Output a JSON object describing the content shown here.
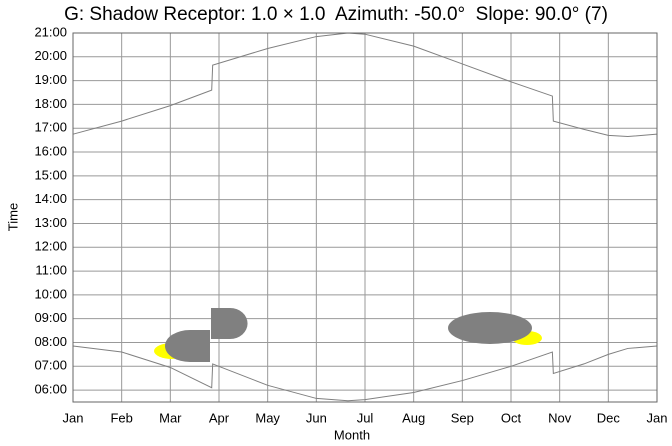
{
  "chart_data": {
    "type": "line",
    "title": "G: Shadow Receptor: 1.0 × 1.0  Azimuth: -50.0°  Slope: 90.0° (7)",
    "xlabel": "Month",
    "ylabel": "Time",
    "xlim": [
      0,
      12
    ],
    "xticks": [
      {
        "value": 0,
        "label": "Jan"
      },
      {
        "value": 1,
        "label": "Feb"
      },
      {
        "value": 2,
        "label": "Mar"
      },
      {
        "value": 3,
        "label": "Apr"
      },
      {
        "value": 4,
        "label": "May"
      },
      {
        "value": 5,
        "label": "Jun"
      },
      {
        "value": 6,
        "label": "Jul"
      },
      {
        "value": 7,
        "label": "Aug"
      },
      {
        "value": 8,
        "label": "Sep"
      },
      {
        "value": 9,
        "label": "Oct"
      },
      {
        "value": 10,
        "label": "Nov"
      },
      {
        "value": 11,
        "label": "Dec"
      },
      {
        "value": 12,
        "label": "Jan"
      }
    ],
    "ylim": [
      5.5,
      21
    ],
    "yticks": [
      {
        "value": 6,
        "label": "06:00"
      },
      {
        "value": 7,
        "label": "07:00"
      },
      {
        "value": 8,
        "label": "08:00"
      },
      {
        "value": 9,
        "label": "09:00"
      },
      {
        "value": 10,
        "label": "10:00"
      },
      {
        "value": 11,
        "label": "11:00"
      },
      {
        "value": 12,
        "label": "12:00"
      },
      {
        "value": 13,
        "label": "13:00"
      },
      {
        "value": 14,
        "label": "14:00"
      },
      {
        "value": 15,
        "label": "15:00"
      },
      {
        "value": 16,
        "label": "16:00"
      },
      {
        "value": 17,
        "label": "17:00"
      },
      {
        "value": 18,
        "label": "18:00"
      },
      {
        "value": 19,
        "label": "19:00"
      },
      {
        "value": 20,
        "label": "20:00"
      },
      {
        "value": 21,
        "label": "21:00"
      }
    ],
    "grid": true,
    "x": [
      0,
      1,
      2,
      2.85,
      2.87,
      4,
      5,
      5.65,
      6,
      7,
      8,
      9,
      9.85,
      9.87,
      10.5,
      11,
      11.4,
      12
    ],
    "series": [
      {
        "color": "#808080",
        "values": [
          16.75,
          17.3,
          17.95,
          18.6,
          19.65,
          20.35,
          20.85,
          21.0,
          20.95,
          20.45,
          19.7,
          18.95,
          18.35,
          17.3,
          16.95,
          16.7,
          16.65,
          16.75
        ]
      },
      {
        "color": "#808080",
        "values": [
          7.85,
          7.6,
          6.95,
          6.1,
          7.1,
          6.2,
          5.65,
          5.55,
          5.6,
          5.9,
          6.4,
          7.0,
          7.6,
          6.7,
          7.1,
          7.5,
          7.75,
          7.85
        ]
      }
    ]
  }
}
